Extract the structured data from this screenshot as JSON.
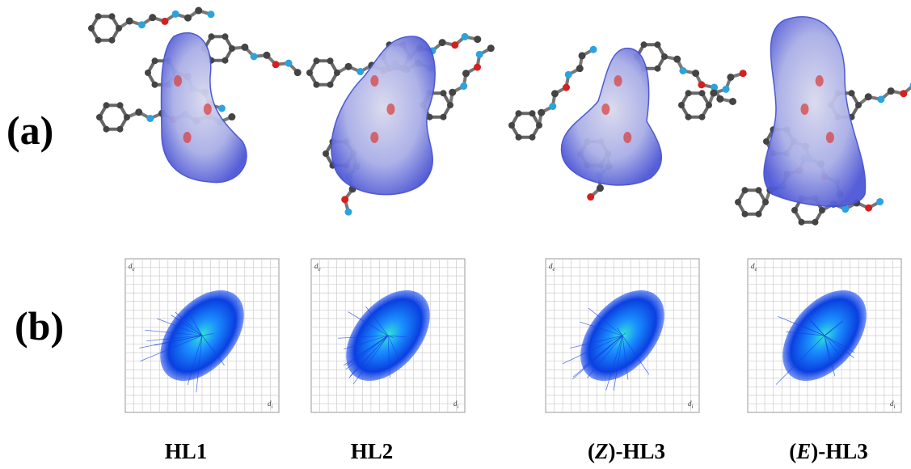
{
  "panel_labels": [
    "(a)",
    "(b)"
  ],
  "fingerprint_axes": {
    "y": [
      "d",
      "e"
    ],
    "x": [
      "d",
      "i"
    ]
  },
  "compounds": [
    {
      "parts": [
        "HL1"
      ]
    },
    {
      "parts": [
        "HL2"
      ]
    },
    {
      "parts": [
        "(",
        "Z",
        ")-HL3"
      ]
    },
    {
      "parts": [
        "(",
        "E",
        ")-HL3"
      ]
    }
  ]
}
